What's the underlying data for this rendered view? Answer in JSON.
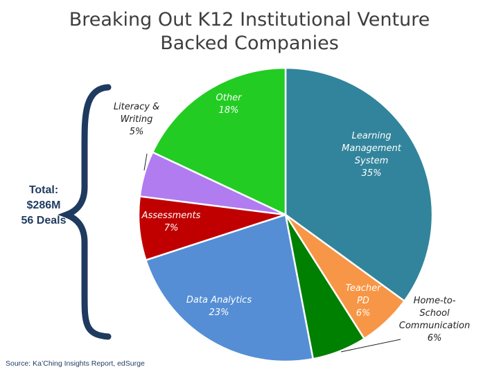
{
  "title": {
    "line1": "Breaking Out K12 Institutional Venture",
    "line2": "Backed Companies"
  },
  "summary": {
    "line1": "Total:",
    "line2": "$286M",
    "line3": "56 Deals"
  },
  "source": "Source: Ka’Ching Insights Report, edSurge",
  "colors": {
    "brace": "#1f3a5f",
    "title": "#3d3d3d"
  },
  "chart_data": {
    "type": "pie",
    "slices": [
      {
        "label": "Learning Management System",
        "value": 35,
        "value_label": "35%",
        "color": "#31849b",
        "label_lines": [
          "Learning",
          "Management",
          "System",
          "35%"
        ],
        "label_color": "#ffffff"
      },
      {
        "label": "Teacher PD",
        "value": 6,
        "value_label": "6%",
        "color": "#f79646",
        "label_lines": [
          "Teacher",
          "PD",
          "6%"
        ],
        "label_color": "#ffffff"
      },
      {
        "label": "Home-to-School Communication",
        "value": 6,
        "value_label": "6%",
        "color": "#008000",
        "label_lines": [
          "Home-to-",
          "School",
          "Communication",
          "6%"
        ],
        "label_color": "#222222",
        "outside": true
      },
      {
        "label": "Data Analytics",
        "value": 23,
        "value_label": "23%",
        "color": "#558ed5",
        "label_lines": [
          "Data Analytics",
          "23%"
        ],
        "label_color": "#ffffff"
      },
      {
        "label": "Assessments",
        "value": 7,
        "value_label": "7%",
        "color": "#c00000",
        "label_lines": [
          "Assessments",
          "7%"
        ],
        "label_color": "#ffffff"
      },
      {
        "label": "Literacy & Writing",
        "value": 5,
        "value_label": "5%",
        "color": "#b07cf0",
        "label_lines": [
          "Literacy &",
          "Writing",
          "5%"
        ],
        "label_color": "#222222",
        "outside": true
      },
      {
        "label": "Other",
        "value": 18,
        "value_label": "18%",
        "color": "#22cc22",
        "label_lines": [
          "Other",
          "18%"
        ],
        "label_color": "#ffffff"
      }
    ]
  }
}
